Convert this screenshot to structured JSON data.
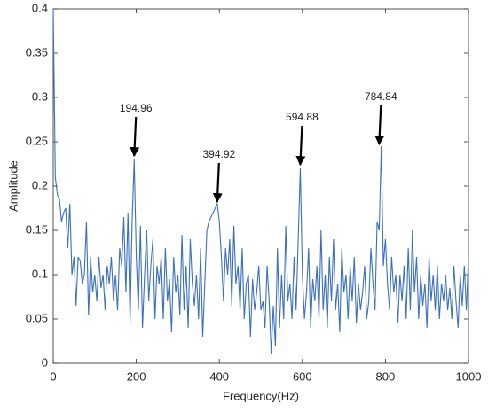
{
  "chart_data": {
    "type": "line",
    "xlabel": "Frequency(Hz)",
    "ylabel": "Amplitude",
    "color": "#3a6fc0",
    "x": [
      0,
      5,
      10,
      15,
      20,
      25,
      30,
      35,
      40,
      45,
      50,
      55,
      60,
      65,
      70,
      75,
      80,
      85,
      90,
      95,
      100,
      105,
      110,
      115,
      120,
      125,
      130,
      135,
      140,
      145,
      150,
      155,
      160,
      165,
      170,
      175,
      180,
      185,
      190,
      195,
      200,
      205,
      210,
      215,
      220,
      225,
      230,
      235,
      240,
      245,
      250,
      255,
      260,
      265,
      270,
      275,
      280,
      285,
      290,
      295,
      300,
      305,
      310,
      315,
      320,
      325,
      330,
      335,
      340,
      345,
      350,
      355,
      360,
      365,
      370,
      375,
      380,
      385,
      390,
      395,
      400,
      405,
      410,
      415,
      420,
      425,
      430,
      435,
      440,
      445,
      450,
      455,
      460,
      465,
      470,
      475,
      480,
      485,
      490,
      495,
      500,
      505,
      510,
      515,
      520,
      525,
      530,
      535,
      540,
      545,
      550,
      555,
      560,
      565,
      570,
      575,
      580,
      585,
      590,
      595,
      600,
      605,
      610,
      615,
      620,
      625,
      630,
      635,
      640,
      645,
      650,
      655,
      660,
      665,
      670,
      675,
      680,
      685,
      690,
      695,
      700,
      705,
      710,
      715,
      720,
      725,
      730,
      735,
      740,
      745,
      750,
      755,
      760,
      765,
      770,
      775,
      780,
      785,
      790,
      795,
      800,
      805,
      810,
      815,
      820,
      825,
      830,
      835,
      840,
      845,
      850,
      855,
      860,
      865,
      870,
      875,
      880,
      885,
      890,
      895,
      900,
      905,
      910,
      915,
      920,
      925,
      930,
      935,
      940,
      945,
      950,
      955,
      960,
      965,
      970,
      975,
      980,
      985,
      990,
      995,
      1000
    ],
    "values": [
      0.4,
      0.21,
      0.19,
      0.185,
      0.16,
      0.17,
      0.175,
      0.13,
      0.18,
      0.1,
      0.12,
      0.065,
      0.12,
      0.115,
      0.09,
      0.1,
      0.16,
      0.055,
      0.12,
      0.08,
      0.1,
      0.07,
      0.12,
      0.085,
      0.1,
      0.06,
      0.11,
      0.09,
      0.12,
      0.07,
      0.1,
      0.06,
      0.13,
      0.11,
      0.165,
      0.08,
      0.17,
      0.045,
      0.16,
      0.23,
      0.12,
      0.06,
      0.155,
      0.04,
      0.1,
      0.15,
      0.07,
      0.11,
      0.14,
      0.05,
      0.11,
      0.09,
      0.12,
      0.05,
      0.13,
      0.07,
      0.095,
      0.035,
      0.12,
      0.08,
      0.1,
      0.055,
      0.145,
      0.06,
      0.11,
      0.04,
      0.14,
      0.09,
      0.065,
      0.1,
      0.05,
      0.13,
      0.03,
      0.09,
      0.15,
      0.16,
      0.165,
      0.17,
      0.175,
      0.18,
      0.16,
      0.12,
      0.07,
      0.13,
      0.1,
      0.14,
      0.065,
      0.155,
      0.09,
      0.11,
      0.06,
      0.13,
      0.05,
      0.09,
      0.1,
      0.03,
      0.095,
      0.06,
      0.08,
      0.11,
      0.06,
      0.07,
      0.04,
      0.11,
      0.07,
      0.01,
      0.065,
      0.02,
      0.13,
      0.04,
      0.1,
      0.05,
      0.155,
      0.07,
      0.09,
      0.05,
      0.12,
      0.06,
      0.14,
      0.22,
      0.1,
      0.05,
      0.08,
      0.13,
      0.04,
      0.095,
      0.07,
      0.11,
      0.05,
      0.15,
      0.06,
      0.1,
      0.04,
      0.12,
      0.07,
      0.14,
      0.06,
      0.09,
      0.035,
      0.13,
      0.08,
      0.1,
      0.05,
      0.11,
      0.07,
      0.12,
      0.045,
      0.09,
      0.06,
      0.08,
      0.11,
      0.05,
      0.07,
      0.13,
      0.09,
      0.06,
      0.16,
      0.15,
      0.245,
      0.11,
      0.14,
      0.09,
      0.06,
      0.12,
      0.08,
      0.1,
      0.045,
      0.1,
      0.07,
      0.11,
      0.05,
      0.13,
      0.06,
      0.15,
      0.08,
      0.12,
      0.05,
      0.1,
      0.065,
      0.09,
      0.04,
      0.12,
      0.07,
      0.1,
      0.06,
      0.11,
      0.05,
      0.09,
      0.07,
      0.1,
      0.06,
      0.085,
      0.05,
      0.11,
      0.07,
      0.04,
      0.1,
      0.065,
      0.11,
      0.06,
      0.12
    ],
    "xlim": [
      0,
      1000
    ],
    "xticks": [
      0,
      200,
      400,
      600,
      800,
      1000
    ],
    "ylim": [
      0,
      0.4
    ],
    "yticks": [
      0,
      0.05,
      0.1,
      0.15,
      0.2,
      0.25,
      0.3,
      0.35,
      0.4
    ],
    "annotations": [
      {
        "text": "194.96",
        "x": 194.96,
        "y": 0.232
      },
      {
        "text": "394.92",
        "x": 394.92,
        "y": 0.18
      },
      {
        "text": "594.88",
        "x": 594.88,
        "y": 0.222
      },
      {
        "text": "784.84",
        "x": 784.84,
        "y": 0.245
      }
    ]
  }
}
